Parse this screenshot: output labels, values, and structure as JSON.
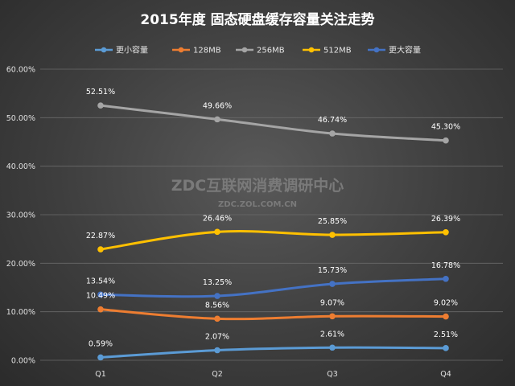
{
  "chart_data": {
    "type": "line",
    "title": "2015年度 固态硬盘缓存容量关注走势",
    "categories": [
      "Q1",
      "Q2",
      "Q3",
      "Q4"
    ],
    "series": [
      {
        "name": "更小容量",
        "color": "#5b9bd5",
        "values": [
          0.59,
          2.07,
          2.61,
          2.51
        ],
        "labels": [
          "0.59%",
          "2.07%",
          "2.61%",
          "2.51%"
        ]
      },
      {
        "name": "128MB",
        "color": "#ed7d31",
        "values": [
          10.49,
          8.56,
          9.07,
          9.02
        ],
        "labels": [
          "10.49%",
          "8.56%",
          "9.07%",
          "9.02%"
        ]
      },
      {
        "name": "256MB",
        "color": "#a5a5a5",
        "values": [
          52.51,
          49.66,
          46.74,
          45.3
        ],
        "labels": [
          "52.51%",
          "49.66%",
          "46.74%",
          "45.30%"
        ]
      },
      {
        "name": "512MB",
        "color": "#ffc000",
        "values": [
          22.87,
          26.46,
          25.85,
          26.39
        ],
        "labels": [
          "22.87%",
          "26.46%",
          "25.85%",
          "26.39%"
        ]
      },
      {
        "name": "更大容量",
        "color": "#4472c4",
        "values": [
          13.54,
          13.25,
          15.73,
          16.78
        ],
        "labels": [
          "13.54%",
          "13.25%",
          "15.73%",
          "16.78%"
        ]
      }
    ],
    "y_ticks": [
      "0.00%",
      "10.00%",
      "20.00%",
      "30.00%",
      "40.00%",
      "50.00%",
      "60.00%"
    ],
    "ylim": [
      0,
      60
    ],
    "grid": true,
    "legend": "top"
  },
  "watermark": {
    "main": "ZDC互联网消费调研中心",
    "sub": "ZDC.ZOL.COM.CN"
  }
}
